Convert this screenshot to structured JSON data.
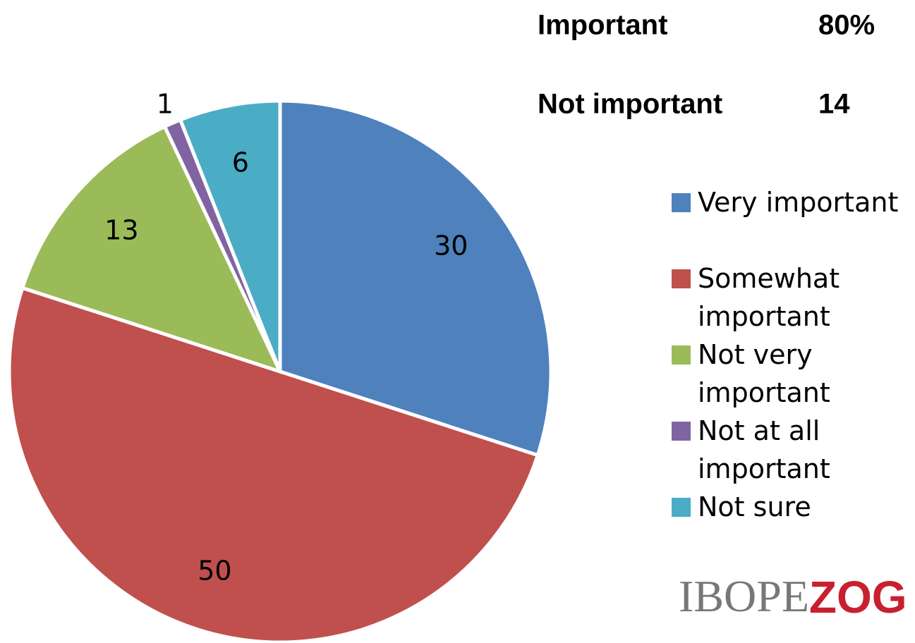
{
  "chart_data": {
    "type": "pie",
    "categories": [
      "Very important",
      "Somewhat important",
      "Not very important",
      "Not at all important",
      "Not sure"
    ],
    "values": [
      30,
      50,
      13,
      1,
      6
    ],
    "colors": [
      "#4f81bd",
      "#c0504d",
      "#9bbb59",
      "#8064a2",
      "#4bacc6"
    ],
    "summary": [
      {
        "label": "Important",
        "value": "80%"
      },
      {
        "label": "Not important",
        "value": "14"
      }
    ],
    "logo": [
      "IBOPE",
      "ZOG"
    ],
    "legend": "right"
  }
}
